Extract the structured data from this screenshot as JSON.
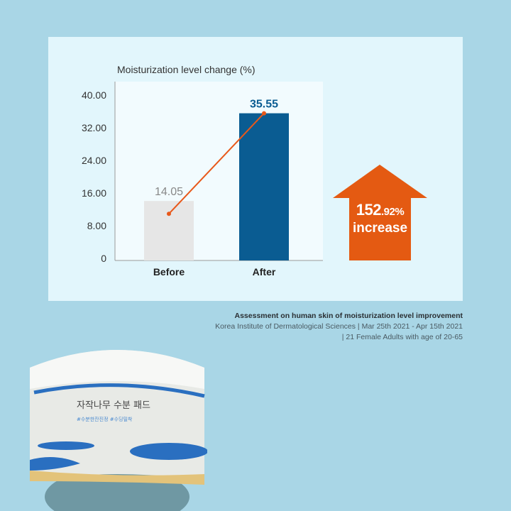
{
  "chart_data": {
    "type": "bar",
    "title": "Moisturization level change (%)",
    "categories": [
      "Before",
      "After"
    ],
    "values": [
      14.05,
      35.55
    ],
    "data_labels": [
      "14.05",
      "35.55"
    ],
    "yticks": [
      "0",
      "8.00",
      "16.00",
      "24.00",
      "32.00",
      "40.00"
    ],
    "ylim": [
      0,
      40
    ],
    "grid": false,
    "colors": {
      "before": "#e6e6e6",
      "after": "#0a5c92",
      "line": "#e8581a",
      "after_label": "#0a5c92",
      "before_label": "#888888"
    }
  },
  "callout": {
    "value_main": "152",
    "value_decimal": ".92%",
    "label": "increase",
    "color": "#e45a12"
  },
  "footnote": {
    "title": "Assessment on human skin of moisturization level improvement",
    "line1": "Korea Institute of Dermatological Sciences | Mar 25th 2021 - Apr 15th 2021",
    "line2": "| 21 Female Adults with age of 20-65"
  },
  "product": {
    "name": "자작나무 수분 패드",
    "tags": "#수분한잔진정 #수딩밀착"
  }
}
